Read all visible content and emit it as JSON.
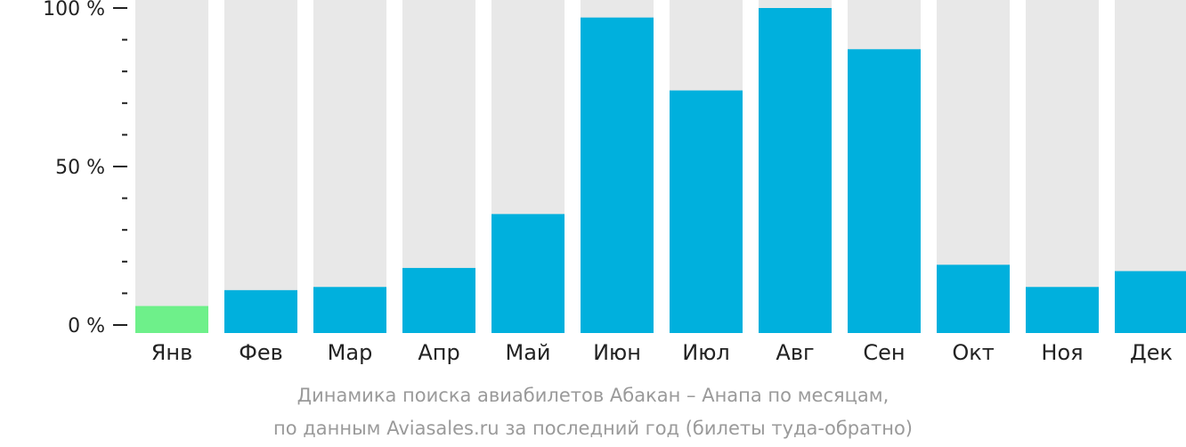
{
  "chart_data": {
    "type": "bar",
    "categories": [
      "Янв",
      "Фев",
      "Мар",
      "Апр",
      "Май",
      "Июн",
      "Июл",
      "Авг",
      "Сен",
      "Окт",
      "Ноя",
      "Дек"
    ],
    "values": [
      6,
      11,
      12,
      18,
      35,
      97,
      74,
      100,
      87,
      19,
      12,
      17
    ],
    "ylim": [
      0,
      100
    ],
    "y_ticks": [
      "0 %",
      "50 %",
      "100 %"
    ],
    "colors": {
      "bar": "#00b0dd",
      "highlight": "#6ef08a",
      "background_bar": "#e8e8e8",
      "axis": "#222222"
    },
    "highlight_index": 0
  },
  "caption": {
    "line1": "Динамика поиска авиабилетов Абакан – Анапа по месяцам,",
    "line2": "по данным Aviasales.ru за последний год (билеты туда-обратно)"
  }
}
